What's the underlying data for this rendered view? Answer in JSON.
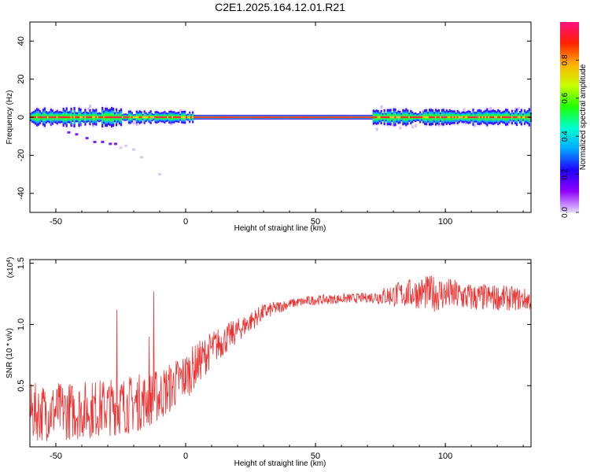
{
  "title": "C2E1.2025.164.12.01.R21",
  "chart_data": [
    {
      "type": "heatmap",
      "xlabel": "Height of straight line (km)",
      "ylabel": "Frequency (Hz)",
      "xlim": [
        -60,
        133
      ],
      "ylim": [
        -50,
        50
      ],
      "xticks": [
        -50,
        0,
        50,
        100
      ],
      "yticks": [
        40,
        20,
        0,
        -20,
        -40
      ],
      "colorbar": {
        "label": "Normalized spectral amplitude",
        "range": [
          0,
          1
        ],
        "ticks": [
          "0.0",
          "0.2",
          "0.4",
          "0.6",
          "0.8"
        ],
        "colors": [
          "#e6d8ff",
          "#9000ff",
          "#2000ff",
          "#00a8ff",
          "#00ffd0",
          "#20ff00",
          "#c8ff00",
          "#ffb000",
          "#ff2000",
          "#ff1080"
        ]
      },
      "ridge_frequency": 0,
      "noise_segments": [
        {
          "from": -60,
          "to": -25,
          "half_width_hz": 4.5
        },
        {
          "from": -25,
          "to": 3,
          "half_width_hz": 3
        },
        {
          "from": 72,
          "to": 133,
          "half_width_hz": 4
        }
      ],
      "clean_segment": {
        "from": 3,
        "to": 72,
        "half_width_hz": 1.5
      },
      "scattered_points": [
        {
          "x": -45,
          "y": -8
        },
        {
          "x": -42,
          "y": -9
        },
        {
          "x": -38,
          "y": -11
        },
        {
          "x": -35,
          "y": -13
        },
        {
          "x": -32,
          "y": -13
        },
        {
          "x": -29,
          "y": -14
        },
        {
          "x": -27,
          "y": -14
        },
        {
          "x": -25,
          "y": -16
        },
        {
          "x": -23,
          "y": -15
        },
        {
          "x": -20,
          "y": -17
        },
        {
          "x": -17,
          "y": -21
        },
        {
          "x": -10,
          "y": -30
        }
      ]
    },
    {
      "type": "line",
      "xlabel": "Height of straight line (km)",
      "ylabel": "SNR (10 * v/v)",
      "scale_label": "(x10",
      "scale_exponent": "4",
      "scale_label_end": ")",
      "xlim": [
        -60,
        133
      ],
      "ylim": [
        0,
        1.53
      ],
      "xticks": [
        -50,
        0,
        50,
        100
      ],
      "yticks": [
        0.5,
        1.0,
        1.5
      ],
      "ytick_labels": [
        "0.5",
        "1.0",
        "1.5"
      ],
      "color": "#ee3030",
      "trend": [
        {
          "x": -60,
          "y": 0.28
        },
        {
          "x": -40,
          "y": 0.3
        },
        {
          "x": -20,
          "y": 0.35
        },
        {
          "x": -10,
          "y": 0.42
        },
        {
          "x": 0,
          "y": 0.58
        },
        {
          "x": 10,
          "y": 0.8
        },
        {
          "x": 20,
          "y": 0.95
        },
        {
          "x": 30,
          "y": 1.1
        },
        {
          "x": 40,
          "y": 1.17
        },
        {
          "x": 50,
          "y": 1.2
        },
        {
          "x": 60,
          "y": 1.21
        },
        {
          "x": 70,
          "y": 1.22
        },
        {
          "x": 80,
          "y": 1.24
        },
        {
          "x": 90,
          "y": 1.26
        },
        {
          "x": 100,
          "y": 1.25
        },
        {
          "x": 110,
          "y": 1.22
        },
        {
          "x": 120,
          "y": 1.22
        },
        {
          "x": 133,
          "y": 1.2
        }
      ],
      "spread": [
        {
          "x": -60,
          "y": 0.24
        },
        {
          "x": -20,
          "y": 0.24
        },
        {
          "x": 0,
          "y": 0.2
        },
        {
          "x": 20,
          "y": 0.1
        },
        {
          "x": 40,
          "y": 0.04
        },
        {
          "x": 70,
          "y": 0.04
        },
        {
          "x": 80,
          "y": 0.1
        },
        {
          "x": 95,
          "y": 0.15
        },
        {
          "x": 110,
          "y": 0.12
        },
        {
          "x": 133,
          "y": 0.09
        }
      ],
      "spikes": [
        {
          "x": -26.5,
          "y": 1.12
        },
        {
          "x": -12.3,
          "y": 1.27
        },
        {
          "x": -14,
          "y": 0.9
        }
      ]
    }
  ]
}
